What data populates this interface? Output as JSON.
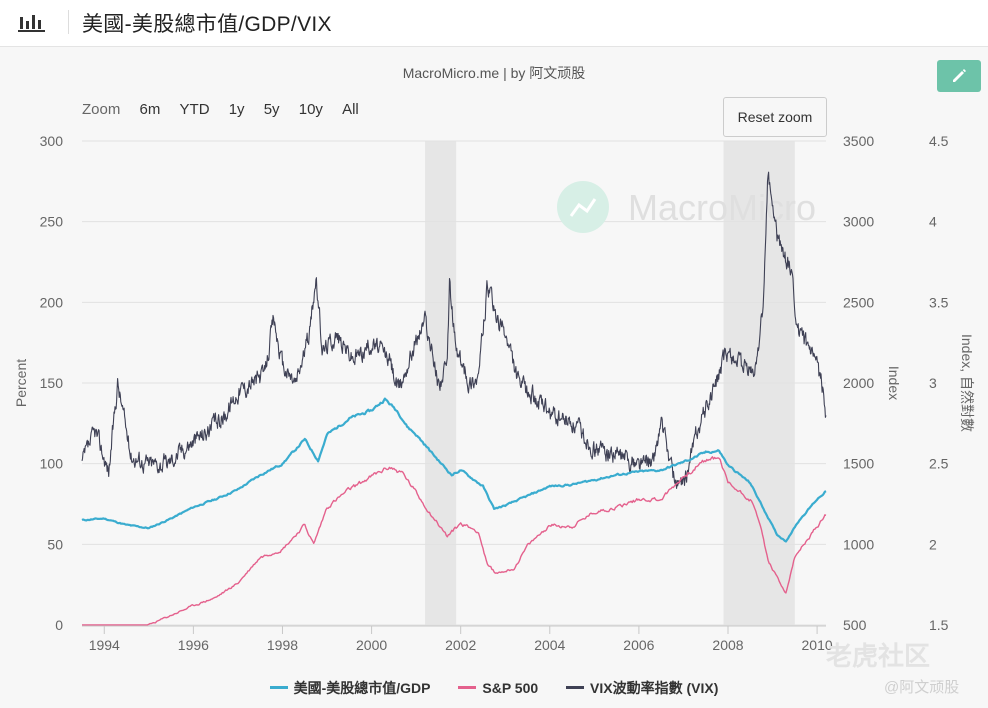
{
  "page": {
    "title": "美國-美股總市值/GDP/VIX"
  },
  "header": {
    "source": "MacroMicro.me | by 阿文顽股"
  },
  "range_selector": {
    "label": "Zoom",
    "buttons": [
      "6m",
      "YTD",
      "1y",
      "5y",
      "10y",
      "All"
    ]
  },
  "reset_zoom": "Reset zoom",
  "watermark": {
    "brand": "MacroMicro",
    "site": "老虎社区",
    "author": "@阿文顽股"
  },
  "colors": {
    "ratio": "#3aaccf",
    "sp500": "#e4618d",
    "vix": "#3f4155",
    "recession": "#e6e6e6",
    "accent": "#6dc3a9"
  },
  "chart_data": {
    "type": "line",
    "title": "美國-美股總市值/GDP/VIX",
    "subtitle": "MacroMicro.me | by 阿文顽股",
    "x_range": [
      1993.5,
      2010.2
    ],
    "x_ticks": [
      "1994",
      "1996",
      "1998",
      "2000",
      "2002",
      "2004",
      "2006",
      "2008",
      "2010"
    ],
    "y_axes": {
      "left": {
        "label": "Percent",
        "min": 0,
        "max": 300,
        "ticks": [
          "0",
          "50",
          "100",
          "150",
          "200",
          "250",
          "300"
        ]
      },
      "right1": {
        "label": "Index",
        "min": 500,
        "max": 3500,
        "ticks": [
          "500",
          "1000",
          "1500",
          "2000",
          "2500",
          "3000",
          "3500"
        ]
      },
      "right2": {
        "label": "Index, 自然對數",
        "min": 1.5,
        "max": 4.5,
        "ticks": [
          "1.5",
          "2",
          "2.5",
          "3",
          "3.5",
          "4",
          "4.5"
        ]
      }
    },
    "recessions": [
      [
        2001.2,
        2001.9
      ],
      [
        2007.9,
        2009.5
      ]
    ],
    "series": [
      {
        "name": "美國-美股總市值/GDP",
        "axis": "left",
        "points": [
          [
            1993.5,
            65
          ],
          [
            1994,
            66
          ],
          [
            1994.5,
            62
          ],
          [
            1995,
            60
          ],
          [
            1995.5,
            66
          ],
          [
            1996,
            73
          ],
          [
            1996.5,
            78
          ],
          [
            1997,
            84
          ],
          [
            1997.5,
            93
          ],
          [
            1998,
            100
          ],
          [
            1998.5,
            115
          ],
          [
            1998.8,
            102
          ],
          [
            1999,
            118
          ],
          [
            1999.5,
            128
          ],
          [
            2000,
            133
          ],
          [
            2000.3,
            140
          ],
          [
            2000.6,
            132
          ],
          [
            2000.8,
            123
          ],
          [
            2001,
            118
          ],
          [
            2001.5,
            102
          ],
          [
            2001.8,
            93
          ],
          [
            2002,
            96
          ],
          [
            2002.5,
            86
          ],
          [
            2002.75,
            72
          ],
          [
            2003,
            74
          ],
          [
            2003.5,
            80
          ],
          [
            2004,
            86
          ],
          [
            2004.5,
            87
          ],
          [
            2005,
            90
          ],
          [
            2005.5,
            93
          ],
          [
            2006,
            95
          ],
          [
            2006.5,
            96
          ],
          [
            2007,
            101
          ],
          [
            2007.5,
            107
          ],
          [
            2007.8,
            108
          ],
          [
            2008,
            99
          ],
          [
            2008.5,
            88
          ],
          [
            2008.8,
            72
          ],
          [
            2009.1,
            56
          ],
          [
            2009.3,
            52
          ],
          [
            2009.6,
            65
          ],
          [
            2010,
            78
          ],
          [
            2010.2,
            83
          ]
        ]
      },
      {
        "name": "S&P 500",
        "axis": "right1",
        "points": [
          [
            1993.5,
            450
          ],
          [
            1994,
            460
          ],
          [
            1995,
            500
          ],
          [
            1996,
            620
          ],
          [
            1996.5,
            670
          ],
          [
            1997,
            760
          ],
          [
            1997.5,
            920
          ],
          [
            1998,
            970
          ],
          [
            1998.5,
            1120
          ],
          [
            1998.7,
            1000
          ],
          [
            1999,
            1230
          ],
          [
            1999.5,
            1340
          ],
          [
            2000,
            1420
          ],
          [
            2000.4,
            1480
          ],
          [
            2000.7,
            1440
          ],
          [
            2001,
            1320
          ],
          [
            2001.3,
            1200
          ],
          [
            2001.7,
            1050
          ],
          [
            2002,
            1130
          ],
          [
            2002.4,
            1080
          ],
          [
            2002.6,
            870
          ],
          [
            2002.8,
            820
          ],
          [
            2003.2,
            850
          ],
          [
            2003.5,
            990
          ],
          [
            2004,
            1120
          ],
          [
            2004.5,
            1110
          ],
          [
            2005,
            1200
          ],
          [
            2005.5,
            1230
          ],
          [
            2006,
            1280
          ],
          [
            2006.5,
            1280
          ],
          [
            2007,
            1420
          ],
          [
            2007.5,
            1520
          ],
          [
            2007.8,
            1540
          ],
          [
            2008,
            1380
          ],
          [
            2008.5,
            1280
          ],
          [
            2008.7,
            1150
          ],
          [
            2008.9,
            900
          ],
          [
            2009.2,
            740
          ],
          [
            2009.3,
            700
          ],
          [
            2009.5,
            920
          ],
          [
            2010,
            1110
          ],
          [
            2010.2,
            1180
          ]
        ]
      },
      {
        "name": "VIX波動率指數 (VIX)",
        "axis": "right2",
        "points": [
          [
            1993.5,
            2.5
          ],
          [
            1993.8,
            2.7
          ],
          [
            1994.1,
            2.45
          ],
          [
            1994.3,
            3.0
          ],
          [
            1994.6,
            2.55
          ],
          [
            1995,
            2.5
          ],
          [
            1995.4,
            2.5
          ],
          [
            1995.8,
            2.6
          ],
          [
            1996.3,
            2.7
          ],
          [
            1996.7,
            2.8
          ],
          [
            1997,
            2.95
          ],
          [
            1997.6,
            3.05
          ],
          [
            1997.8,
            3.4
          ],
          [
            1998,
            3.1
          ],
          [
            1998.3,
            3.0
          ],
          [
            1998.6,
            3.3
          ],
          [
            1998.75,
            3.65
          ],
          [
            1998.9,
            3.2
          ],
          [
            1999.2,
            3.3
          ],
          [
            1999.6,
            3.15
          ],
          [
            2000,
            3.25
          ],
          [
            2000.4,
            3.15
          ],
          [
            2000.6,
            2.95
          ],
          [
            2000.9,
            3.2
          ],
          [
            2001.2,
            3.4
          ],
          [
            2001.5,
            3.0
          ],
          [
            2001.7,
            3.1
          ],
          [
            2001.75,
            3.6
          ],
          [
            2001.9,
            3.2
          ],
          [
            2002.2,
            3.0
          ],
          [
            2002.4,
            3.05
          ],
          [
            2002.6,
            3.6
          ],
          [
            2002.8,
            3.4
          ],
          [
            2003,
            3.3
          ],
          [
            2003.3,
            3.0
          ],
          [
            2003.7,
            2.9
          ],
          [
            2004,
            2.8
          ],
          [
            2004.5,
            2.75
          ],
          [
            2005,
            2.6
          ],
          [
            2005.5,
            2.55
          ],
          [
            2006,
            2.5
          ],
          [
            2006.3,
            2.5
          ],
          [
            2006.5,
            2.75
          ],
          [
            2006.8,
            2.4
          ],
          [
            2007,
            2.35
          ],
          [
            2007.3,
            2.7
          ],
          [
            2007.6,
            2.9
          ],
          [
            2008,
            3.2
          ],
          [
            2008.3,
            3.1
          ],
          [
            2008.6,
            3.05
          ],
          [
            2008.8,
            3.5
          ],
          [
            2008.9,
            4.3
          ],
          [
            2009.1,
            3.9
          ],
          [
            2009.4,
            3.7
          ],
          [
            2009.6,
            3.3
          ],
          [
            2009.9,
            3.15
          ],
          [
            2010.1,
            3.0
          ],
          [
            2010.2,
            2.8
          ]
        ]
      }
    ]
  }
}
